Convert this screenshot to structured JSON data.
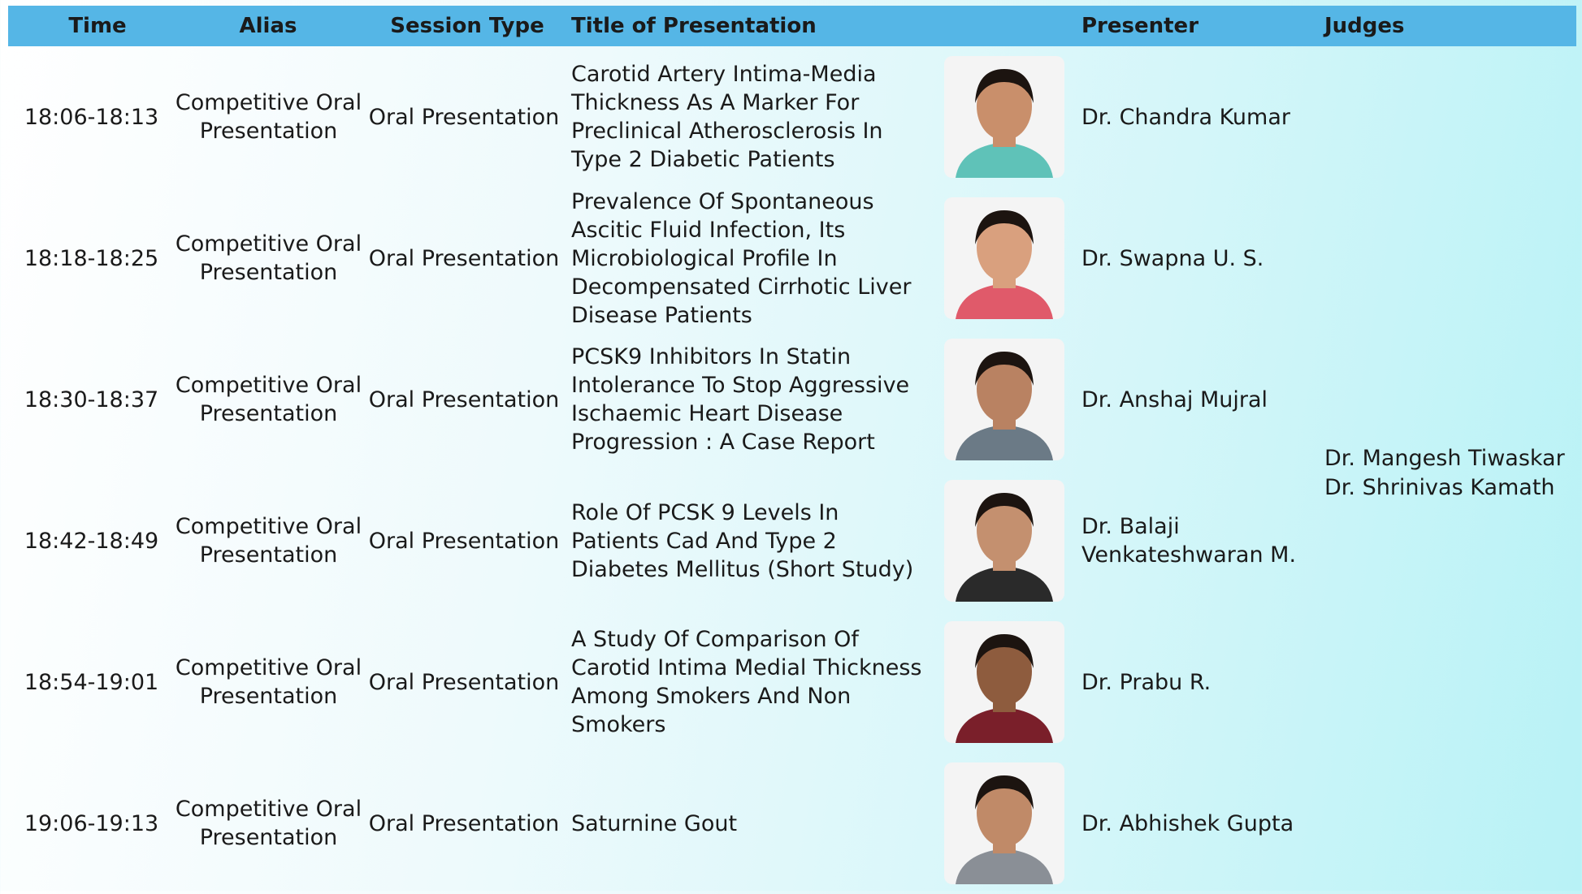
{
  "header": {
    "columns": [
      "Time",
      "Alias",
      "Session Type",
      "Title of Presentation",
      "Presenter",
      "Judges"
    ]
  },
  "rows": [
    {
      "time": "18:06-18:13",
      "alias": "Competitive Oral Presentation",
      "session_type": "Oral Presentation",
      "title": "Carotid Artery Intima-Media Thickness As A Marker For Preclinical Atherosclerosis In Type 2 Diabetic Patients",
      "presenter": "Dr. Chandra Kumar"
    },
    {
      "time": "18:18-18:25",
      "alias": "Competitive Oral Presentation",
      "session_type": "Oral Presentation",
      "title": "Prevalence Of Spontaneous Ascitic Fluid Infection, Its Microbiological Profile In Decompensated Cirrhotic Liver Disease Patients",
      "presenter": "Dr. Swapna U. S."
    },
    {
      "time": "18:30-18:37",
      "alias": "Competitive Oral Presentation",
      "session_type": "Oral Presentation",
      "title": "PCSK9 Inhibitors In Statin Intolerance To Stop Aggressive Ischaemic Heart Disease Progression : A Case Report",
      "presenter": "Dr. Anshaj Mujral"
    },
    {
      "time": "18:42-18:49",
      "alias": "Competitive Oral Presentation",
      "session_type": "Oral Presentation",
      "title": "Role Of PCSK 9 Levels In Patients Cad And Type 2 Diabetes Mellitus (Short Study)",
      "presenter": "Dr. Balaji Venkateshwaran M."
    },
    {
      "time": "18:54-19:01",
      "alias": "Competitive Oral Presentation",
      "session_type": "Oral Presentation",
      "title": "A Study Of Comparison Of Carotid Intima Medial Thickness Among Smokers And Non Smokers",
      "presenter": "Dr. Prabu R."
    },
    {
      "time": "19:06-19:13",
      "alias": "Competitive Oral Presentation",
      "session_type": "Oral Presentation",
      "title": "Saturnine Gout",
      "presenter": "Dr. Abhishek Gupta"
    }
  ],
  "judges": [
    "Dr. Mangesh Tiwaskar",
    "Dr. Shrinivas Kamath"
  ]
}
